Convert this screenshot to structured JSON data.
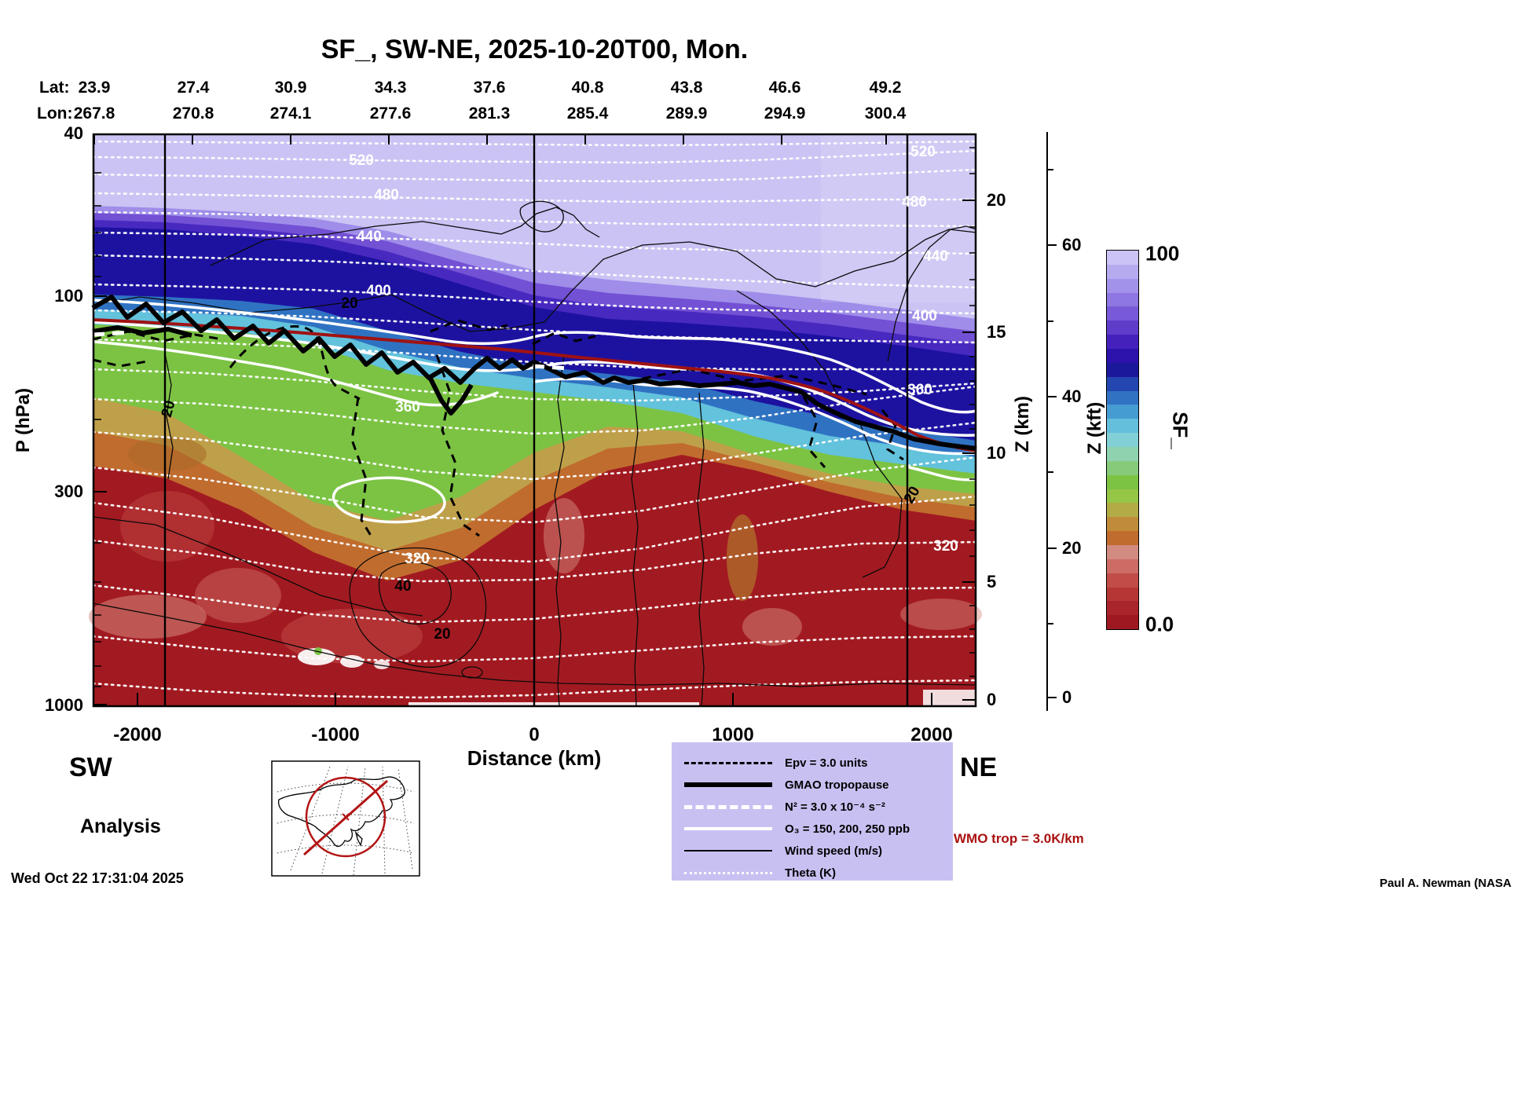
{
  "title": "SF_, SW-NE, 2025-10-20T00, Mon.",
  "top_axis": {
    "lat_label": "Lat:",
    "lon_label": "Lon:",
    "lat_values": [
      "23.9",
      "27.4",
      "30.9",
      "34.3",
      "37.6",
      "40.8",
      "43.8",
      "46.6",
      "49.2"
    ],
    "lon_values": [
      "267.8",
      "270.8",
      "274.1",
      "277.6",
      "281.3",
      "285.4",
      "289.9",
      "294.9",
      "300.4"
    ]
  },
  "axes": {
    "pressure": {
      "label": "P (hPa)",
      "ticks": [
        "40",
        "100",
        "300",
        "1000"
      ]
    },
    "z_km": {
      "label": "Z (km)",
      "ticks": [
        "20",
        "15",
        "10",
        "5",
        "0"
      ]
    },
    "z_kft": {
      "label": "Z (kft)",
      "ticks": [
        "60",
        "40",
        "20",
        "0"
      ]
    },
    "distance": {
      "label": "Distance (km)",
      "ticks": [
        "-2000",
        "-1000",
        "0",
        "1000",
        "2000"
      ]
    }
  },
  "corner_labels": {
    "sw": "SW",
    "ne": "NE"
  },
  "annotations": {
    "analysis": "Analysis",
    "timestamp": "Wed Oct 22 17:31:04 2025",
    "credit": "Paul A. Newman (NASA",
    "wmo": "WMO trop = 3.0K/km"
  },
  "colorbar": {
    "label": "SF_",
    "max": "100",
    "min": "0.0",
    "colors": [
      "#cbc3f5",
      "#b7abf0",
      "#a392ea",
      "#8e77e3",
      "#785ad8",
      "#5f3cca",
      "#4521bc",
      "#2d12ac",
      "#1c189c",
      "#2446b0",
      "#3172c2",
      "#459cd2",
      "#63bfdc",
      "#82d0d6",
      "#8ed2b0",
      "#87cb7a",
      "#7cc344",
      "#95c646",
      "#b2ab46",
      "#c08c3a",
      "#c06c2e",
      "#d28b80",
      "#cc6c64",
      "#c24c48",
      "#b63636",
      "#aa242c",
      "#9e1822"
    ]
  },
  "legend": {
    "items": [
      {
        "label": "Epv = 3.0 units",
        "style": "epv"
      },
      {
        "label": "GMAO tropopause",
        "style": "gmao"
      },
      {
        "label": "N² = 3.0 x 10⁻⁴ s⁻²",
        "style": "n2"
      },
      {
        "label": "O₃ = 150, 200, 250 ppb",
        "style": "o3"
      },
      {
        "label": "Wind speed (m/s)",
        "style": "wind"
      },
      {
        "label": "Theta (K)",
        "style": "theta"
      }
    ]
  },
  "plot_labels": {
    "theta": [
      "520",
      "520",
      "480",
      "480",
      "440",
      "440",
      "400",
      "400",
      "360",
      "360",
      "320",
      "320"
    ],
    "wind": [
      "20",
      "20",
      "40",
      "20",
      "20"
    ]
  },
  "chart_data": {
    "type": "heatmap",
    "subtype": "vertical-cross-section",
    "title": "SF_, SW-NE, 2025-10-20T00, Mon.",
    "field": "SF_ (stratospheric fraction, colorbar 0.0 - 100)",
    "xlabel": "Distance (km)",
    "x_range": [
      -2230,
      2230
    ],
    "x_ticks": [
      -2000,
      -1000,
      0,
      1000,
      2000
    ],
    "y_axis_left": {
      "label": "P (hPa)",
      "scale": "log",
      "ticks": [
        40,
        100,
        300,
        1000
      ]
    },
    "y_axis_right": {
      "label": "Z (km)",
      "ticks": [
        20,
        15,
        10,
        5,
        0
      ]
    },
    "y_axis_far_right": {
      "label": "Z (kft)",
      "ticks": [
        60,
        40,
        20,
        0
      ]
    },
    "colorbar": {
      "label": "SF_",
      "min": 0,
      "max": 100
    },
    "section_endpoints": {
      "start": "SW",
      "end": "NE"
    },
    "lat_points": [
      23.9,
      27.4,
      30.9,
      34.3,
      37.6,
      40.8,
      43.8,
      46.6,
      49.2
    ],
    "lon_points": [
      267.8,
      270.8,
      274.1,
      277.6,
      281.3,
      285.4,
      289.9,
      294.9,
      300.4
    ],
    "theta_contour_labels_K": [
      520,
      480,
      440,
      400,
      360,
      320
    ],
    "wind_contour_labels_ms": [
      20,
      40
    ],
    "vertical_reference_lines_km": [
      -1860,
      0,
      1880
    ],
    "tropopause_profile": {
      "distance_km": [
        -2230,
        -1500,
        -1000,
        -500,
        0,
        500,
        1000,
        1500,
        2000,
        2230
      ],
      "pressure_hPa": [
        106,
        122,
        148,
        168,
        152,
        166,
        176,
        226,
        242,
        248
      ]
    },
    "overlays": [
      "Epv = 3.0 units",
      "GMAO tropopause",
      "N² = 3.0 x 10⁻⁴ s⁻²",
      "O₃ = 150, 200, 250 ppb",
      "Wind speed (m/s)",
      "Theta (K)"
    ],
    "legend_position": "bottom-center",
    "grid": false
  }
}
